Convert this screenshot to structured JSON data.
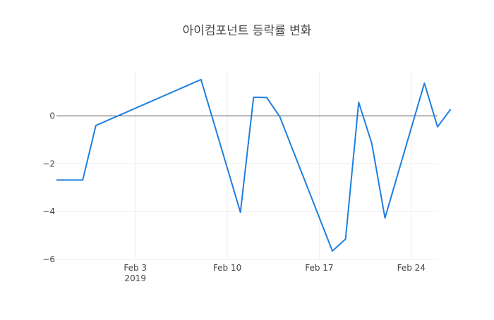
{
  "chart_data": {
    "type": "line",
    "title": "아이컴포넌트 등락률 변화",
    "xlabel": "",
    "ylabel": "",
    "x_ticks": [
      {
        "date": "2019-02-03",
        "label": "Feb 3",
        "sublabel": "2019"
      },
      {
        "date": "2019-02-10",
        "label": "Feb 10",
        "sublabel": ""
      },
      {
        "date": "2019-02-17",
        "label": "Feb 17",
        "sublabel": ""
      },
      {
        "date": "2019-02-24",
        "label": "Feb 24",
        "sublabel": ""
      }
    ],
    "y_ticks": [
      0,
      -2,
      -4,
      -6
    ],
    "xlim": [
      "2019-01-28",
      "2019-02-26"
    ],
    "ylim": [
      -6,
      1.9
    ],
    "grid": true,
    "zero_line": true,
    "series": [
      {
        "color": "#1f7fe0",
        "points": [
          {
            "x": "2019-01-28",
            "y": -2.68
          },
          {
            "x": "2019-01-30",
            "y": -2.68
          },
          {
            "x": "2019-01-31",
            "y": -0.4
          },
          {
            "x": "2019-02-08",
            "y": 1.52
          },
          {
            "x": "2019-02-11",
            "y": -4.03
          },
          {
            "x": "2019-02-12",
            "y": 0.78
          },
          {
            "x": "2019-02-13",
            "y": 0.77
          },
          {
            "x": "2019-02-14",
            "y": -0.04
          },
          {
            "x": "2019-02-18",
            "y": -5.65
          },
          {
            "x": "2019-02-19",
            "y": -5.15
          },
          {
            "x": "2019-02-20",
            "y": 0.57
          },
          {
            "x": "2019-02-21",
            "y": -1.16
          },
          {
            "x": "2019-02-22",
            "y": -4.27
          },
          {
            "x": "2019-02-25",
            "y": 1.37
          },
          {
            "x": "2019-02-26",
            "y": -0.46
          },
          {
            "x": "2019-02-27",
            "y": 0.28
          }
        ]
      }
    ]
  }
}
